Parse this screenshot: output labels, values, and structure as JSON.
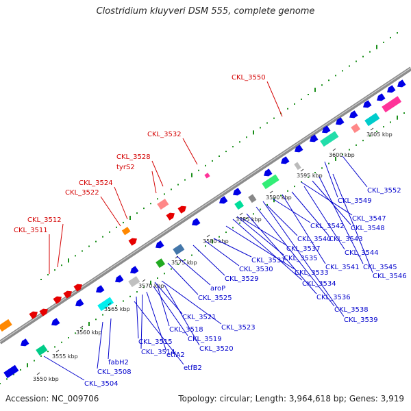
{
  "header": {
    "title": "Clostridium kluyveri DSM 555, complete genome"
  },
  "footer": {
    "accession": "Accession: NC_009706",
    "summary": "Topology: circular; Length: 3,964,618 bp; Genes: 3,919"
  },
  "colors": {
    "backbone": "#8c8c8c",
    "dots": "#1a8f1a",
    "forward_label": "#d40000",
    "reverse_label": "#0000cc",
    "cds": "#0000e6",
    "rna": "#e60000"
  },
  "tick_labels": [
    "3550 kbp",
    "3555 kbp",
    "3560 kbp",
    "3565 kbp",
    "3570 kbp",
    "3575 kbp",
    "3580 kbp",
    "3585 kbp",
    "3590 kbp",
    "3595 kbp",
    "3600 kbp",
    "3605 kbp"
  ],
  "forward_labels": [
    "CKL_3511",
    "CKL_3512",
    "CKL_3522",
    "CKL_3524",
    "tyrS2",
    "CKL_3528",
    "CKL_3532",
    "CKL_3550"
  ],
  "reverse_labels": [
    "CKL_3504",
    "etfB2",
    "CKL_3508",
    "fabH2",
    "etfA2",
    "CKL_3514",
    "CKL_3515",
    "CKL_3520",
    "CKL_3519",
    "CKL_3518",
    "CKL_3523",
    "CKL_3521",
    "CKL_3525",
    "aroP",
    "CKL_3529",
    "CKL_3530",
    "CKL_3531",
    "CKL_3533",
    "CKL_3534",
    "CKL_3535",
    "CKL_3536",
    "CKL_3537",
    "CKL_3538",
    "CKL_3539",
    "CKL_3540",
    "CKL_3541",
    "CKL_3542",
    "CKL_3543",
    "CKL_3544",
    "CKL_3545",
    "CKL_3546",
    "CKL_3547",
    "CKL_3548",
    "CKL_3549",
    "CKL_3552"
  ]
}
